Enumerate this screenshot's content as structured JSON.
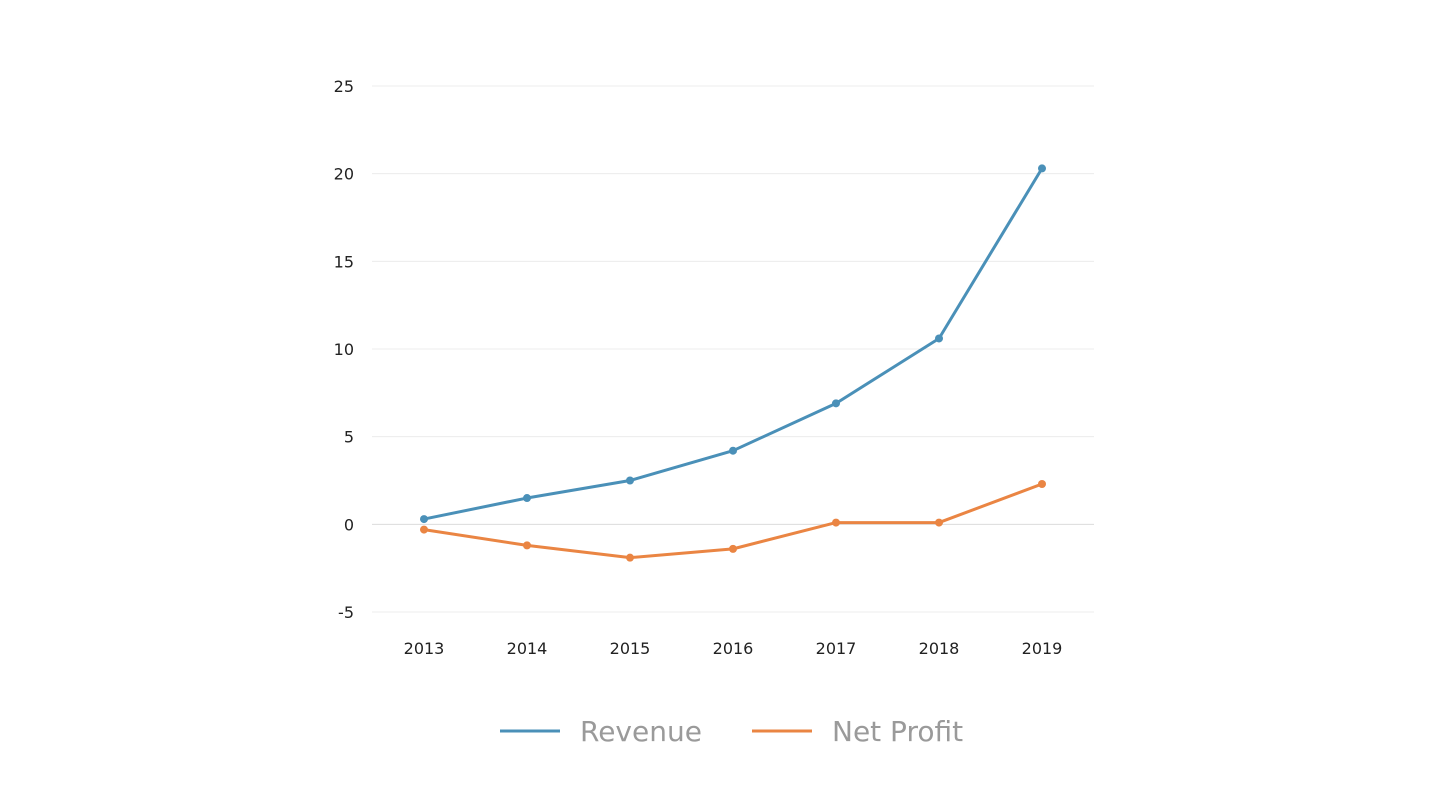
{
  "chart_data": {
    "type": "line",
    "title": "",
    "xlabel": "",
    "ylabel": "",
    "categories": [
      "2013",
      "2014",
      "2015",
      "2016",
      "2017",
      "2018",
      "2019"
    ],
    "ylim": [
      -5,
      25
    ],
    "yticks": [
      -5,
      0,
      5,
      10,
      15,
      20,
      25
    ],
    "grid": true,
    "legend_position": "bottom",
    "series": [
      {
        "name": "Revenue",
        "color": "#4a90b8",
        "values": [
          0.3,
          1.5,
          2.5,
          4.2,
          6.9,
          10.6,
          20.3
        ]
      },
      {
        "name": "Net Profit",
        "color": "#ea8543",
        "values": [
          -0.3,
          -1.2,
          -1.9,
          -1.4,
          0.1,
          0.1,
          2.3
        ]
      }
    ]
  }
}
